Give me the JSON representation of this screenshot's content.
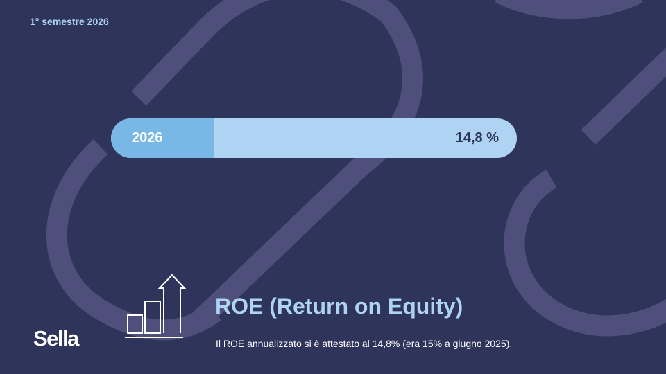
{
  "header": {
    "period": "1° semestre 2026"
  },
  "metric_bar": {
    "year_label": "2026",
    "value_label": "14,8 %",
    "fill_fraction": 0.255
  },
  "content": {
    "title": "ROE (Return on Equity)",
    "description": "Il ROE annualizzato si è attestato al 14,8% (era 15% a giugno 2025)."
  },
  "brand": {
    "logo_text": "Sella"
  },
  "icons": {
    "chart": "bar-chart-growth-icon"
  },
  "colors": {
    "background": "#2f345b",
    "accent_light": "#aed3f3",
    "accent_fill": "#79b8e6",
    "decor": "#4e4f7b",
    "text_white": "#ffffff"
  }
}
